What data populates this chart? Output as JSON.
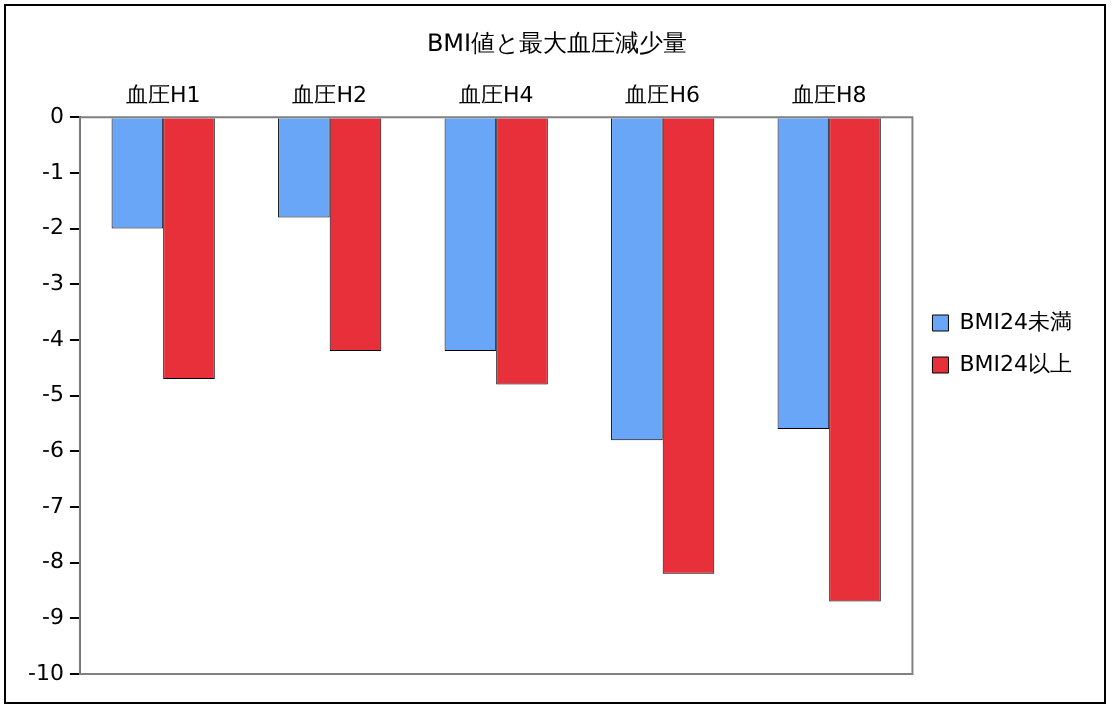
{
  "chart_data": {
    "type": "bar",
    "title": "BMI値と最大血圧減少量",
    "categories": [
      "血圧H1",
      "血圧H2",
      "血圧H4",
      "血圧H6",
      "血圧H8"
    ],
    "series": [
      {
        "name": "BMI24未満",
        "color": "#6aa6f8",
        "values": [
          -2.0,
          -1.8,
          -4.2,
          -5.8,
          -5.6
        ]
      },
      {
        "name": "BMI24以上",
        "color": "#e8303a",
        "values": [
          -4.7,
          -4.2,
          -4.8,
          -8.2,
          -8.7
        ]
      }
    ],
    "ylim": [
      -10,
      0
    ],
    "yticks": [
      0,
      -1,
      -2,
      -3,
      -4,
      -5,
      -6,
      -7,
      -8,
      -9,
      -10
    ],
    "grid": false,
    "legend": "right"
  }
}
